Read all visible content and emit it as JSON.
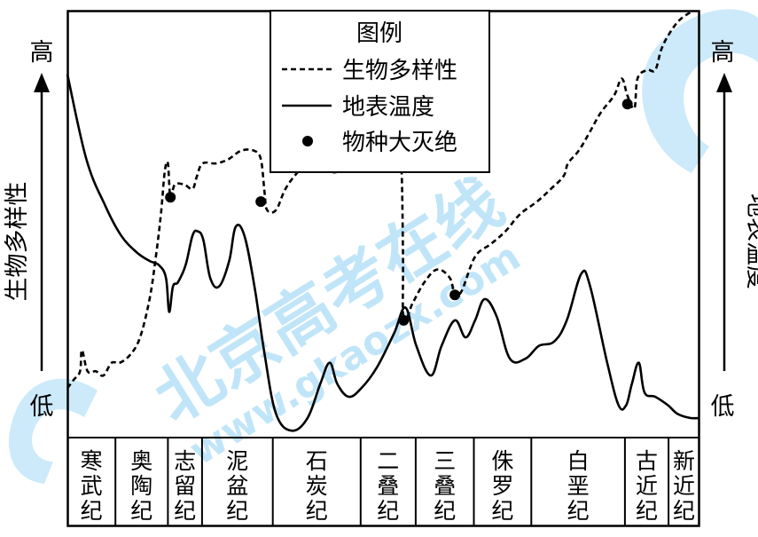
{
  "chart_data": {
    "type": "line",
    "legend": {
      "title": "图例",
      "placement": "top-center",
      "entries": [
        {
          "label": "生物多样性",
          "style": "dashed"
        },
        {
          "label": "地表温度",
          "style": "solid"
        },
        {
          "label": "物种大灭绝",
          "style": "dot"
        }
      ]
    },
    "y_left": {
      "label": "生物多样性",
      "high": "高",
      "low": "低"
    },
    "y_right": {
      "label": "地表温度",
      "high": "高",
      "low": "低"
    },
    "periods": [
      "寒武纪",
      "奥陶纪",
      "志留纪",
      "泥盆纪",
      "石炭纪",
      "二叠纪",
      "三叠纪",
      "侏罗纪",
      "白垩纪",
      "古近纪",
      "新近纪"
    ],
    "x_range": [
      0,
      100
    ],
    "y_range": [
      0,
      100
    ],
    "period_boundaries": [
      0,
      7.6,
      15.9,
      21.3,
      32.5,
      46.4,
      55.1,
      64.3,
      73.4,
      88.2,
      95.1,
      100
    ],
    "series": [
      {
        "name": "生物多样性",
        "style": "dashed",
        "points": [
          [
            0,
            11
          ],
          [
            1,
            13
          ],
          [
            2,
            15
          ],
          [
            2.3,
            20
          ],
          [
            3.2,
            15
          ],
          [
            4.5,
            15
          ],
          [
            5.7,
            14
          ],
          [
            7,
            17
          ],
          [
            8.3,
            17
          ],
          [
            10,
            19
          ],
          [
            11.5,
            23
          ],
          [
            13,
            32
          ],
          [
            14,
            42
          ],
          [
            14.8,
            52
          ],
          [
            15.4,
            62
          ],
          [
            15.9,
            64
          ],
          [
            16.3,
            56
          ],
          [
            17,
            59
          ],
          [
            18.5,
            59
          ],
          [
            19.8,
            58
          ],
          [
            20.5,
            61
          ],
          [
            21.4,
            64
          ],
          [
            23.5,
            64
          ],
          [
            25.5,
            65
          ],
          [
            27.5,
            67
          ],
          [
            29.5,
            67
          ],
          [
            30.6,
            65
          ],
          [
            31.2,
            57
          ],
          [
            31.6,
            53
          ],
          [
            33,
            53
          ],
          [
            34.5,
            58
          ],
          [
            36.5,
            62
          ],
          [
            38.3,
            64
          ],
          [
            39.5,
            67
          ],
          [
            41,
            63
          ],
          [
            42.7,
            62
          ],
          [
            44.5,
            65
          ],
          [
            47,
            67
          ],
          [
            49,
            67
          ],
          [
            51,
            67
          ],
          [
            52.5,
            65
          ],
          [
            52.9,
            61
          ],
          [
            53.1,
            42
          ],
          [
            53.2,
            27
          ],
          [
            54.6,
            31
          ],
          [
            56.5,
            36
          ],
          [
            58.5,
            39
          ],
          [
            60.5,
            37
          ],
          [
            61.3,
            33
          ],
          [
            62.4,
            34
          ],
          [
            64.5,
            42
          ],
          [
            67,
            45
          ],
          [
            69.3,
            48
          ],
          [
            71.6,
            52
          ],
          [
            74.3,
            55
          ],
          [
            76.5,
            58
          ],
          [
            78.5,
            61
          ],
          [
            79.2,
            64
          ],
          [
            80.9,
            67
          ],
          [
            82.5,
            71
          ],
          [
            84.4,
            76
          ],
          [
            86.5,
            80
          ],
          [
            87.7,
            84
          ],
          [
            88.6,
            80
          ],
          [
            89.7,
            77
          ],
          [
            90.2,
            84
          ],
          [
            91.7,
            86
          ],
          [
            93,
            86
          ],
          [
            94,
            91
          ],
          [
            95.4,
            95
          ],
          [
            97,
            98
          ],
          [
            99,
            100
          ]
        ]
      },
      {
        "name": "地表温度",
        "style": "solid",
        "points": [
          [
            0,
            85
          ],
          [
            3,
            65
          ],
          [
            6,
            54
          ],
          [
            8.5,
            47
          ],
          [
            11,
            43
          ],
          [
            13,
            41
          ],
          [
            14.5,
            40
          ],
          [
            15.6,
            37
          ],
          [
            16.1,
            29
          ],
          [
            16.7,
            35
          ],
          [
            17.5,
            36
          ],
          [
            18.7,
            40
          ],
          [
            19.8,
            47
          ],
          [
            20.6,
            48
          ],
          [
            21.5,
            46
          ],
          [
            22.6,
            37
          ],
          [
            24,
            35
          ],
          [
            25.6,
            41
          ],
          [
            26.6,
            49
          ],
          [
            28,
            47
          ],
          [
            29.6,
            35
          ],
          [
            31.2,
            19
          ],
          [
            33,
            5
          ],
          [
            35.5,
            1
          ],
          [
            38,
            4
          ],
          [
            40,
            12
          ],
          [
            41.5,
            17
          ],
          [
            42.7,
            12
          ],
          [
            44.5,
            9
          ],
          [
            46.5,
            11
          ],
          [
            49,
            16
          ],
          [
            51.7,
            24
          ],
          [
            53.5,
            30
          ],
          [
            55.2,
            21
          ],
          [
            57.5,
            14
          ],
          [
            59.2,
            21
          ],
          [
            61.3,
            27
          ],
          [
            63,
            23
          ],
          [
            64.5,
            27
          ],
          [
            66,
            32
          ],
          [
            67.9,
            28
          ],
          [
            70,
            18
          ],
          [
            72.5,
            18
          ],
          [
            74.6,
            21
          ],
          [
            77,
            22
          ],
          [
            79,
            27
          ],
          [
            81.3,
            38
          ],
          [
            82.7,
            35
          ],
          [
            85.4,
            17
          ],
          [
            87.2,
            7
          ],
          [
            88.4,
            7
          ],
          [
            89.3,
            12
          ],
          [
            90.4,
            17
          ],
          [
            91.3,
            10
          ],
          [
            93,
            9
          ],
          [
            95,
            7
          ],
          [
            96.5,
            5
          ],
          [
            98.5,
            4
          ],
          [
            100,
            4
          ]
        ]
      }
    ],
    "extinctions": [
      [
        16.3,
        56
      ],
      [
        30.6,
        55
      ],
      [
        53.2,
        27
      ],
      [
        61.3,
        33
      ],
      [
        88.6,
        78
      ]
    ]
  },
  "watermark": {
    "brand": "北京高考在线",
    "url": "www.gkaozx.com"
  },
  "colors": {
    "line": "#000000",
    "watermark": "#8fd0f3"
  }
}
